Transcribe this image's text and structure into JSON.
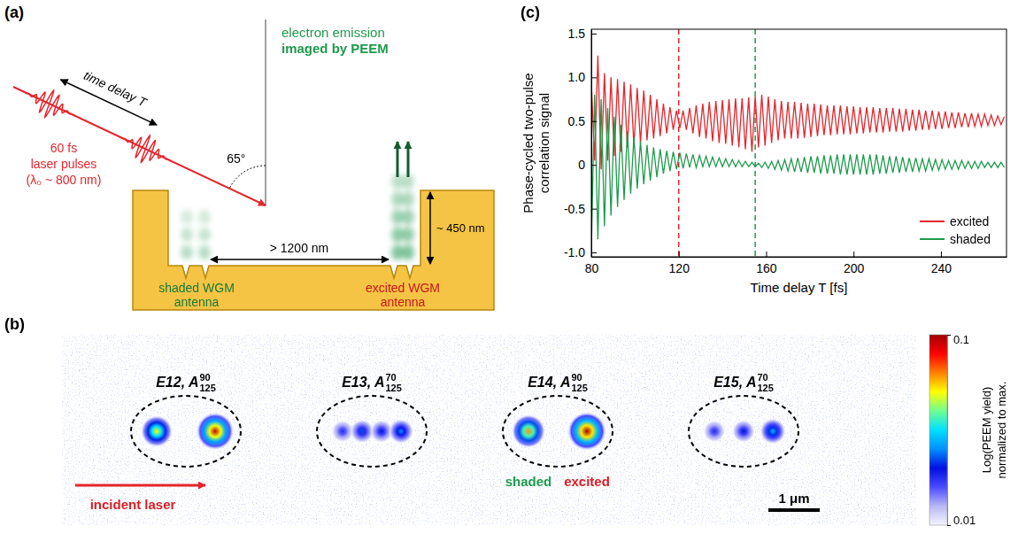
{
  "chart_data": {
    "type": "line",
    "panel": "(c)",
    "xlabel": "Time delay T [fs]",
    "ylabel": [
      "Phase-cycled two-pulse",
      "correlation signal"
    ],
    "x": [
      80,
      81.5,
      83,
      84.5,
      86,
      87.5,
      89,
      90.5,
      92,
      93.5,
      95,
      96.5,
      98,
      99.5,
      101,
      102.5,
      104,
      105.5,
      107,
      108.5,
      110,
      111.5,
      113,
      114.5,
      116,
      117.5,
      119,
      120.5,
      122,
      123.5,
      125,
      126.5,
      128,
      129.5,
      131,
      132.5,
      134,
      135.5,
      137,
      138.5,
      140,
      141.5,
      143,
      144.5,
      146,
      147.5,
      149,
      150.5,
      152,
      153.5,
      155,
      156.5,
      158,
      159.5,
      161,
      162.5,
      164,
      165.5,
      167,
      168.5,
      170,
      171.5,
      173,
      174.5,
      176,
      177.5,
      179,
      180.5,
      182,
      183.5,
      185,
      186.5,
      188,
      189.5,
      191,
      192.5,
      194,
      195.5,
      197,
      198.5,
      200,
      201.5,
      203,
      204.5,
      206,
      207.5,
      209,
      210.5,
      212,
      213.5,
      215,
      216.5,
      218,
      219.5,
      221,
      222.5,
      224,
      225.5,
      227,
      228.5,
      230,
      231.5,
      233,
      234.5,
      236,
      237.5,
      239,
      240.5,
      242,
      243.5,
      245,
      246.5,
      248,
      249.5,
      251,
      252.5,
      254,
      255.5,
      257,
      258.5,
      260,
      261.5,
      263,
      264.5,
      266,
      267.5,
      269
    ],
    "series": [
      {
        "name": "excited",
        "color": "#e3262c",
        "values": [
          0.95,
          0.05,
          1.25,
          -0.05,
          1.05,
          0.05,
          1.0,
          0.1,
          0.98,
          0.15,
          0.95,
          0.2,
          0.92,
          0.22,
          0.88,
          0.25,
          0.85,
          0.28,
          0.8,
          0.3,
          0.75,
          0.33,
          0.7,
          0.36,
          0.66,
          0.4,
          0.62,
          0.42,
          0.62,
          0.4,
          0.65,
          0.36,
          0.68,
          0.32,
          0.7,
          0.3,
          0.72,
          0.27,
          0.73,
          0.25,
          0.74,
          0.24,
          0.75,
          0.22,
          0.76,
          0.2,
          0.76,
          0.18,
          0.77,
          0.15,
          0.78,
          0.2,
          0.8,
          0.22,
          0.78,
          0.25,
          0.75,
          0.28,
          0.73,
          0.3,
          0.72,
          0.3,
          0.72,
          0.3,
          0.71,
          0.31,
          0.7,
          0.32,
          0.7,
          0.33,
          0.69,
          0.34,
          0.68,
          0.34,
          0.68,
          0.35,
          0.68,
          0.35,
          0.67,
          0.35,
          0.67,
          0.36,
          0.66,
          0.36,
          0.66,
          0.37,
          0.66,
          0.37,
          0.65,
          0.37,
          0.65,
          0.38,
          0.65,
          0.38,
          0.64,
          0.38,
          0.64,
          0.39,
          0.63,
          0.39,
          0.63,
          0.4,
          0.62,
          0.4,
          0.62,
          0.41,
          0.61,
          0.41,
          0.61,
          0.42,
          0.6,
          0.42,
          0.6,
          0.43,
          0.59,
          0.43,
          0.59,
          0.44,
          0.58,
          0.44,
          0.58,
          0.45,
          0.57,
          0.45,
          0.56,
          0.46,
          0.55
        ]
      },
      {
        "name": "shaded",
        "color": "#1f9a4c",
        "values": [
          -0.98,
          0.8,
          -0.85,
          0.75,
          -0.7,
          0.65,
          -0.58,
          0.55,
          -0.48,
          0.46,
          -0.4,
          0.38,
          -0.33,
          0.32,
          -0.27,
          0.27,
          -0.22,
          0.23,
          -0.18,
          0.2,
          -0.14,
          0.18,
          -0.1,
          0.16,
          -0.07,
          0.15,
          -0.05,
          0.14,
          -0.04,
          0.13,
          -0.03,
          0.12,
          -0.03,
          0.11,
          -0.02,
          0.1,
          -0.02,
          0.09,
          -0.02,
          0.08,
          -0.02,
          0.07,
          -0.02,
          0.06,
          -0.02,
          0.05,
          -0.02,
          0.04,
          -0.02,
          0.03,
          -0.02,
          0.02,
          -0.03,
          0.03,
          -0.04,
          0.04,
          -0.05,
          0.05,
          -0.06,
          0.06,
          -0.07,
          0.07,
          -0.08,
          0.08,
          -0.08,
          0.09,
          -0.09,
          0.1,
          -0.09,
          0.1,
          -0.1,
          0.11,
          -0.1,
          0.11,
          -0.1,
          0.12,
          -0.11,
          0.12,
          -0.11,
          0.12,
          -0.11,
          0.12,
          -0.11,
          0.12,
          -0.11,
          0.12,
          -0.11,
          0.12,
          -0.1,
          0.11,
          -0.1,
          0.1,
          -0.09,
          0.1,
          -0.09,
          0.09,
          -0.08,
          0.08,
          -0.08,
          0.08,
          -0.07,
          0.07,
          -0.07,
          0.07,
          -0.06,
          0.06,
          -0.06,
          0.06,
          -0.05,
          0.05,
          -0.05,
          0.05,
          -0.05,
          0.05,
          -0.04,
          0.04,
          -0.04,
          0.04,
          -0.04,
          0.04,
          -0.03,
          0.03,
          -0.03,
          0.03,
          -0.03,
          0.03,
          -0.03
        ]
      }
    ],
    "xlim": [
      80,
      270
    ],
    "xticks": [
      80,
      120,
      160,
      200,
      240
    ],
    "ylim": [
      -1.05,
      1.55
    ],
    "yticks": [
      {
        "value": -1,
        "label": "-1.0"
      },
      -0.5,
      0,
      0.5,
      {
        "value": 1,
        "label": "1.0"
      },
      1.5
    ],
    "vlines": [
      {
        "x": 120,
        "color": "#e3262c",
        "line_style": "dashed"
      },
      {
        "x": 155,
        "color": "#1f9a4c",
        "line_style": "dashed"
      }
    ],
    "legend": "lower right"
  },
  "diagram": {
    "panel": "(a)",
    "time_delay": "time delay T",
    "pulses": [
      "60 fs",
      "laser pulses",
      "(λ₀ ~ 800 nm)"
    ],
    "angle": "65°",
    "emission": [
      "electron emission",
      "imaged by PEEM"
    ],
    "depth": "~ 450 nm",
    "separation": "> 1200 nm",
    "shaded": [
      "shaded WGM",
      "antenna"
    ],
    "excited": [
      "excited WGM",
      "antenna"
    ]
  },
  "image": {
    "panel": "(b)",
    "antennas": [
      {
        "label": {
          "main": "E12, A",
          "sup": "90",
          "sub": "125"
        },
        "yields": [
          0.05,
          0.09
        ]
      },
      {
        "label": {
          "main": "E13, A",
          "sup": "70",
          "sub": "125"
        },
        "yields": [
          0.018,
          0.022,
          0.02,
          0.025
        ]
      },
      {
        "label": {
          "main": "E14, A",
          "sup": "90",
          "sub": "125"
        },
        "yields": [
          0.06,
          0.1
        ],
        "roles": [
          "shaded",
          "excited"
        ]
      },
      {
        "label": {
          "main": "E15, A",
          "sup": "70",
          "sub": "125"
        },
        "yields": [
          0.018,
          0.02,
          0.028
        ]
      }
    ],
    "laser": "incident laser",
    "scale_bar": "1 μm",
    "colorbar": {
      "label": [
        "Log(PEEM yield)",
        "normalized to max."
      ],
      "range": [
        0.01,
        0.1
      ],
      "ticks": [
        0.01,
        0.1
      ],
      "log": true
    }
  }
}
